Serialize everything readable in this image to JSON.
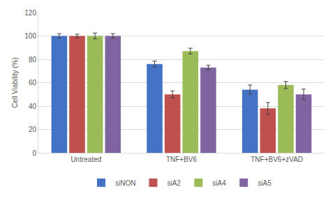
{
  "chart_data": {
    "type": "bar",
    "y_label": "Cell Viability (%)",
    "categories": [
      "Untreated",
      "TNF+BV6",
      "TNF+BV6+zVAD"
    ],
    "series": [
      {
        "name": "siNON",
        "color": "#4472c4",
        "values": [
          100,
          76,
          54
        ],
        "errors": [
          2,
          2.5,
          4
        ]
      },
      {
        "name": "siA2",
        "color": "#c0504d",
        "values": [
          100,
          50,
          38
        ],
        "errors": [
          1.5,
          3,
          5
        ]
      },
      {
        "name": "siA4",
        "color": "#9bbb59",
        "values": [
          100,
          87,
          58
        ],
        "errors": [
          2.5,
          2.5,
          3
        ]
      },
      {
        "name": "siA5",
        "color": "#8064a2",
        "values": [
          100,
          73,
          50
        ],
        "errors": [
          2,
          2,
          4.5
        ]
      }
    ],
    "ylim": [
      0,
      120
    ],
    "yticks": [
      0,
      20,
      40,
      60,
      80,
      100,
      120
    ],
    "grid": true,
    "legend": "bottom"
  }
}
